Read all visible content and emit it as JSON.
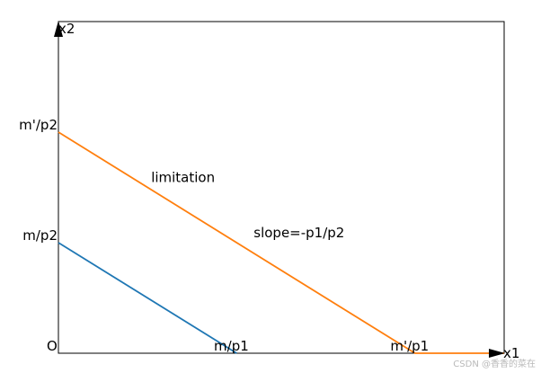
{
  "chart_data": {
    "type": "line",
    "title": "",
    "xlabel": "x1",
    "ylabel": "x2",
    "origin_label": "O",
    "xlim": [
      0,
      10
    ],
    "ylim": [
      0,
      6
    ],
    "grid": false,
    "legend": "none",
    "series": [
      {
        "color": "#1f77b4",
        "x": [
          0,
          4
        ],
        "y": [
          2,
          0
        ]
      },
      {
        "color": "#ff7f0e",
        "x": [
          0,
          8,
          10
        ],
        "y": [
          4,
          0,
          0
        ]
      }
    ],
    "x_ticks": [
      {
        "value": 4,
        "label": "m/p1"
      },
      {
        "value": 8,
        "label": "m'/p1"
      }
    ],
    "y_ticks": [
      {
        "value": 2,
        "label": "m/p2"
      },
      {
        "value": 4,
        "label": "m'/p2"
      }
    ],
    "annotations": [
      {
        "text": "limitation",
        "x": 2,
        "y": 3.1
      },
      {
        "text": "slope=-p1/p2",
        "x": 4.3,
        "y": 2.1
      }
    ]
  },
  "watermark": "CSDN @香香的菜在"
}
